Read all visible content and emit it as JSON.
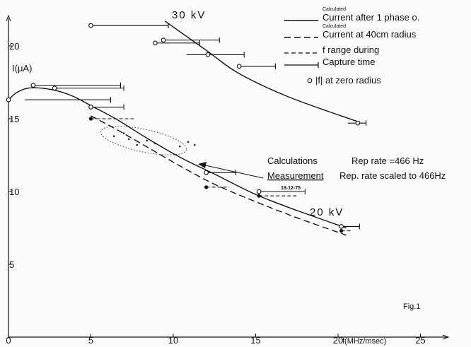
{
  "chart_data": {
    "type": "line",
    "xlabel": "f(MHz/msec)",
    "ylabel": "I(μA)",
    "xlim": [
      0,
      26
    ],
    "ylim": [
      0,
      23
    ],
    "x_ticks": [
      {
        "value": 0,
        "label": "0"
      },
      {
        "value": 5,
        "label": "5"
      },
      {
        "value": 10,
        "label": "10"
      },
      {
        "value": 15,
        "label": "15"
      },
      {
        "value": 20,
        "label": "20"
      },
      {
        "value": 25,
        "label": "25"
      }
    ],
    "y_ticks": [
      {
        "value": 5,
        "label": "5"
      },
      {
        "value": 10,
        "label": "10"
      },
      {
        "value": 15,
        "label": "15"
      },
      {
        "value": 20,
        "label": "20"
      }
    ],
    "curves": [
      {
        "id": "calc_30kv",
        "style": "solid",
        "points": [
          [
            9.5,
            21.7
          ],
          [
            12,
            19.7
          ],
          [
            14,
            18.1
          ],
          [
            17,
            16.5
          ],
          [
            21.2,
            14.8
          ]
        ]
      },
      {
        "id": "calc_20kv_peak",
        "style": "solid",
        "points": [
          [
            0,
            16.3
          ],
          [
            0.5,
            16.8
          ],
          [
            1.2,
            17.1
          ],
          [
            2,
            17.1
          ],
          [
            3,
            16.9
          ],
          [
            4,
            16.5
          ],
          [
            5,
            15.9
          ],
          [
            6.5,
            15.0
          ],
          [
            8.5,
            13.6
          ],
          [
            10.5,
            12.3
          ],
          [
            12.5,
            11.2
          ],
          [
            15,
            9.8
          ],
          [
            17.5,
            8.7
          ],
          [
            20.5,
            7.5
          ]
        ]
      },
      {
        "id": "calc_20kv_40cm",
        "style": "dashed",
        "points": [
          [
            5,
            15.2
          ],
          [
            6.5,
            14.3
          ],
          [
            8.5,
            13.0
          ],
          [
            10.5,
            11.7
          ],
          [
            12.5,
            10.5
          ],
          [
            15,
            9.3
          ],
          [
            17.5,
            8.2
          ],
          [
            20.5,
            7.0
          ]
        ]
      }
    ],
    "markers_open": [
      [
        0,
        16.3
      ],
      [
        1.5,
        17.3
      ],
      [
        2.8,
        17.1
      ],
      [
        5,
        15.8
      ],
      [
        12,
        11.3
      ],
      [
        15.2,
        10.0
      ],
      [
        20.2,
        7.6
      ],
      [
        5,
        21.4
      ],
      [
        8.9,
        20.2
      ],
      [
        9.4,
        20.4
      ],
      [
        12.1,
        19.4
      ],
      [
        14,
        18.6
      ],
      [
        21.2,
        14.7
      ]
    ],
    "markers_filled": [
      [
        5,
        15.0
      ],
      [
        12,
        10.3
      ],
      [
        15.2,
        9.7
      ],
      [
        20.2,
        7.3
      ]
    ],
    "capture_time_bars": [
      {
        "y": 21.4,
        "x0": 5,
        "x1": 9.7
      },
      {
        "y": 20.4,
        "x0": 9.4,
        "x1": 12.8
      },
      {
        "y": 20.2,
        "x0": 8.9,
        "x1": 11.6
      },
      {
        "y": 19.4,
        "x0": 10.8,
        "x1": 14.3
      },
      {
        "y": 18.6,
        "x0": 14,
        "x1": 16.2
      },
      {
        "y": 14.7,
        "x0": 20.6,
        "x1": 21.7
      },
      {
        "y": 17.3,
        "x0": 1.5,
        "x1": 6.8
      },
      {
        "y": 17.1,
        "x0": 2.8,
        "x1": 7.0
      },
      {
        "y": 16.3,
        "x0": 1.0,
        "x1": 6.2
      },
      {
        "y": 15.8,
        "x0": 5,
        "x1": 7.0
      },
      {
        "y": 11.3,
        "x0": 12,
        "x1": 13.8
      },
      {
        "y": 10.0,
        "x0": 15.2,
        "x1": 18.0
      },
      {
        "y": 7.6,
        "x0": 20.2,
        "x1": 21.3
      }
    ],
    "f_range_bars": [
      {
        "y": 15.0,
        "x0": 5,
        "x1": 7.7
      },
      {
        "y": 10.3,
        "x0": 12,
        "x1": 13.4
      },
      {
        "y": 9.7,
        "x0": 15.2,
        "x1": 17.6
      },
      {
        "y": 7.3,
        "x0": 20.2,
        "x1": 20.8
      }
    ],
    "measurement_points": [
      [
        6.4,
        13.8
      ],
      [
        7.0,
        14.0
      ],
      [
        7.3,
        13.6
      ],
      [
        8.4,
        13.5
      ],
      [
        8.9,
        13.3
      ],
      [
        10.4,
        13.1
      ],
      [
        10.9,
        13.4
      ],
      [
        11.3,
        13.2
      ],
      [
        7.8,
        13.2
      ]
    ],
    "measurement_region_center": [
      8.2,
      13.5
    ],
    "legend": [
      {
        "line": "solid",
        "super": "Calculated",
        "label": "Current after 1 phase o."
      },
      {
        "line": "dashed",
        "super": "Calculated",
        "label": "Current at 40cm radius"
      },
      {
        "line": "f-range",
        "label": "f range during"
      },
      {
        "line": "capture",
        "label": "Capture time"
      },
      {
        "line": "circle",
        "label": "|f| at zero radius"
      }
    ],
    "annotations": {
      "kv30": "30 kV",
      "kv20": "20 kV",
      "calc_label": "Calculations",
      "calc_rate": "Rep rate =466 Hz",
      "meas_label": "Measurement",
      "meas_rate": "Rep. rate scaled to 466Hz",
      "meas_date": "18-12-75",
      "fig_label": "Fig.1"
    }
  }
}
